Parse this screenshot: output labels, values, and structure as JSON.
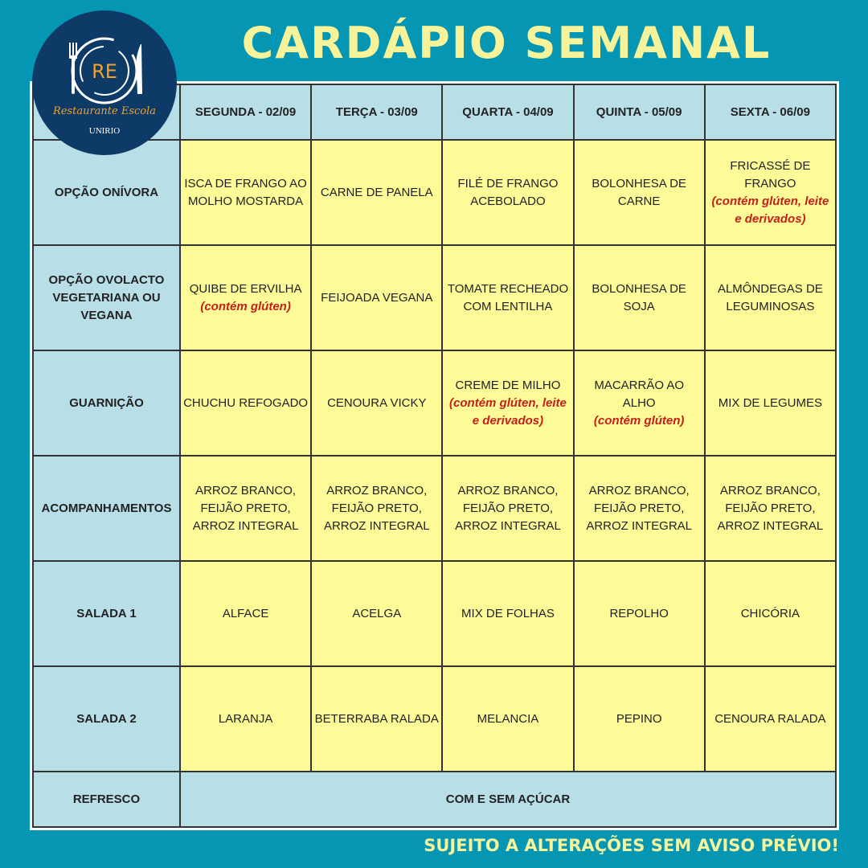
{
  "title": "CARDÁPIO SEMANAL",
  "logo": {
    "monogram": "RE",
    "name": "Restaurante Escola",
    "sub": "UNIRIO"
  },
  "footer": "SUJEITO A ALTERAÇÕES SEM AVISO PRÉVIO!",
  "colors": {
    "background": "#0596b4",
    "header": "#b8dfe8",
    "cell": "#fdfb98",
    "title": "#f6f39a",
    "note": "#c3201c"
  },
  "days": [
    "SEGUNDA - 02/09",
    "TERÇA - 03/09",
    "QUARTA - 04/09",
    "QUINTA - 05/09",
    "SEXTA - 06/09"
  ],
  "rows": [
    {
      "label": "OPÇÃO ONÍVORA",
      "cells": [
        {
          "text": "ISCA DE FRANGO AO MOLHO MOSTARDA"
        },
        {
          "text": "CARNE DE PANELA"
        },
        {
          "text": "FILÉ DE FRANGO ACEBOLADO"
        },
        {
          "text": "BOLONHESA DE CARNE"
        },
        {
          "text": "FRICASSÉ DE FRANGO",
          "note": "(contém glúten, leite e derivados)"
        }
      ]
    },
    {
      "label": "OPÇÃO OVOLACTO VEGETARIANA OU VEGANA",
      "cells": [
        {
          "text": "QUIBE DE ERVILHA",
          "note": "(contém glúten)"
        },
        {
          "text": "FEIJOADA VEGANA"
        },
        {
          "text": "TOMATE RECHEADO COM LENTILHA"
        },
        {
          "text": "BOLONHESA DE SOJA"
        },
        {
          "text": "ALMÔNDEGAS DE LEGUMINOSAS"
        }
      ]
    },
    {
      "label": "GUARNIÇÃO",
      "cells": [
        {
          "text": "CHUCHU REFOGADO"
        },
        {
          "text": "CENOURA VICKY"
        },
        {
          "text": "CREME DE MILHO",
          "note": "(contém glúten, leite e derivados)"
        },
        {
          "text": "MACARRÃO AO ALHO",
          "note": "(contém glúten)"
        },
        {
          "text": "MIX DE LEGUMES"
        }
      ]
    },
    {
      "label": "ACOMPANHAMENTOS",
      "cells": [
        {
          "text": "ARROZ BRANCO, FEIJÃO PRETO, ARROZ INTEGRAL"
        },
        {
          "text": "ARROZ BRANCO, FEIJÃO PRETO, ARROZ INTEGRAL"
        },
        {
          "text": "ARROZ BRANCO, FEIJÃO PRETO, ARROZ INTEGRAL"
        },
        {
          "text": "ARROZ BRANCO, FEIJÃO PRETO, ARROZ INTEGRAL"
        },
        {
          "text": "ARROZ BRANCO, FEIJÃO PRETO, ARROZ INTEGRAL"
        }
      ]
    },
    {
      "label": "SALADA 1",
      "cells": [
        {
          "text": "ALFACE"
        },
        {
          "text": "ACELGA"
        },
        {
          "text": "MIX DE FOLHAS"
        },
        {
          "text": "REPOLHO"
        },
        {
          "text": "CHICÓRIA"
        }
      ]
    },
    {
      "label": "SALADA 2",
      "cells": [
        {
          "text": "LARANJA"
        },
        {
          "text": "BETERRABA RALADA"
        },
        {
          "text": "MELANCIA"
        },
        {
          "text": "PEPINO"
        },
        {
          "text": "CENOURA RALADA"
        }
      ]
    }
  ],
  "refresco": {
    "label": "REFRESCO",
    "text": "COM E SEM AÇÚCAR"
  }
}
